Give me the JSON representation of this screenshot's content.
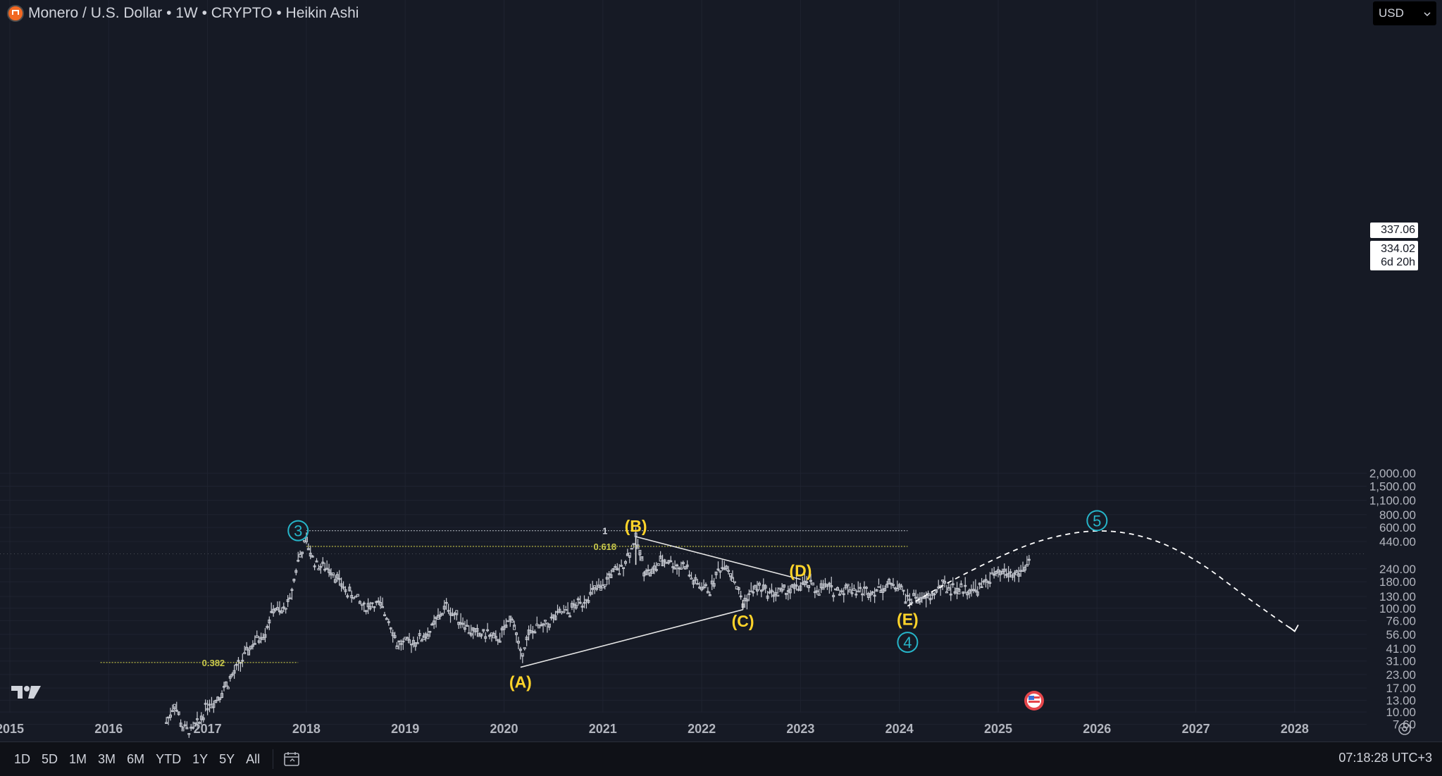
{
  "header": {
    "title": "Monero / U.S. Dollar • 1W • CRYPTO • Heikin Ashi",
    "coin_icon": "monero-logo"
  },
  "currency": {
    "label": "USD",
    "icon": "chevron-down-icon"
  },
  "price_tags": {
    "upper": "337.06",
    "lower": "334.02",
    "countdown": "6d 20h"
  },
  "time_ranges": [
    "1D",
    "5D",
    "1M",
    "3M",
    "6M",
    "YTD",
    "1Y",
    "5Y",
    "All"
  ],
  "clock": "07:18:28 UTC+3",
  "colors": {
    "background": "#161a25",
    "candles": "#c9ccd4",
    "wave_labels": "#ffd42a",
    "circle_labels": "#26b5c9",
    "fib_levels": "#c8c84a",
    "projection": "#ffffff"
  },
  "chart_data": {
    "type": "line",
    "title": "Monero / U.S. Dollar • 1W • CRYPTO • Heikin Ashi",
    "style": "heikin-ashi-candles",
    "y_scale": "log",
    "ylim": [
      6,
      2200
    ],
    "xlim": [
      "2015-01",
      "2028-09"
    ],
    "grid": true,
    "y_ticks": [
      2000,
      1500,
      1100,
      800,
      600,
      440,
      240,
      180,
      130,
      100,
      76,
      56,
      41,
      31,
      23,
      17,
      13,
      10,
      7.6
    ],
    "y_tick_labels": [
      "2,000.00",
      "1,500.00",
      "1,100.00",
      "800.00",
      "600.00",
      "440.00",
      "240.00",
      "180.00",
      "130.00",
      "100.00",
      "76.00",
      "56.00",
      "41.00",
      "31.00",
      "23.00",
      "17.00",
      "13.00",
      "10.00",
      "7.60"
    ],
    "x_tick_labels": [
      "2015",
      "2016",
      "2017",
      "2018",
      "2019",
      "2020",
      "2021",
      "2022",
      "2023",
      "2024",
      "2025",
      "2026",
      "2027",
      "2028"
    ],
    "price_path": [
      [
        "2016-08",
        8
      ],
      [
        "2016-09",
        12
      ],
      [
        "2016-10",
        7
      ],
      [
        "2016-11",
        6.5
      ],
      [
        "2016-12",
        8
      ],
      [
        "2017-01",
        12
      ],
      [
        "2017-02",
        13
      ],
      [
        "2017-03",
        17
      ],
      [
        "2017-04",
        22
      ],
      [
        "2017-05",
        30
      ],
      [
        "2017-06",
        40
      ],
      [
        "2017-07",
        50
      ],
      [
        "2017-08",
        60
      ],
      [
        "2017-09",
        100
      ],
      [
        "2017-10",
        90
      ],
      [
        "2017-11",
        120
      ],
      [
        "2017-12",
        300
      ],
      [
        "2018-01",
        430
      ],
      [
        "2018-02",
        280
      ],
      [
        "2018-03",
        250
      ],
      [
        "2018-04",
        240
      ],
      [
        "2018-05",
        180
      ],
      [
        "2018-06",
        140
      ],
      [
        "2018-07",
        130
      ],
      [
        "2018-08",
        100
      ],
      [
        "2018-09",
        110
      ],
      [
        "2018-10",
        105
      ],
      [
        "2018-11",
        80
      ],
      [
        "2018-12",
        45
      ],
      [
        "2019-01",
        45
      ],
      [
        "2019-02",
        48
      ],
      [
        "2019-03",
        52
      ],
      [
        "2019-04",
        60
      ],
      [
        "2019-05",
        80
      ],
      [
        "2019-06",
        105
      ],
      [
        "2019-07",
        85
      ],
      [
        "2019-08",
        75
      ],
      [
        "2019-09",
        60
      ],
      [
        "2019-10",
        55
      ],
      [
        "2019-11",
        58
      ],
      [
        "2019-12",
        48
      ],
      [
        "2020-01",
        60
      ],
      [
        "2020-02",
        85
      ],
      [
        "2020-03",
        35
      ],
      [
        "2020-04",
        55
      ],
      [
        "2020-05",
        65
      ],
      [
        "2020-06",
        66
      ],
      [
        "2020-07",
        80
      ],
      [
        "2020-08",
        90
      ],
      [
        "2020-09",
        95
      ],
      [
        "2020-10",
        110
      ],
      [
        "2020-11",
        125
      ],
      [
        "2020-12",
        150
      ],
      [
        "2021-01",
        155
      ],
      [
        "2021-02",
        220
      ],
      [
        "2021-03",
        230
      ],
      [
        "2021-04",
        320
      ],
      [
        "2021-05",
        470
      ],
      [
        "2021-06",
        240
      ],
      [
        "2021-07",
        220
      ],
      [
        "2021-08",
        280
      ],
      [
        "2021-09",
        290
      ],
      [
        "2021-10",
        250
      ],
      [
        "2021-11",
        260
      ],
      [
        "2021-12",
        180
      ],
      [
        "2022-01",
        160
      ],
      [
        "2022-02",
        150
      ],
      [
        "2022-03",
        230
      ],
      [
        "2022-04",
        270
      ],
      [
        "2022-05",
        180
      ],
      [
        "2022-06",
        110
      ],
      [
        "2022-07",
        145
      ],
      [
        "2022-08",
        160
      ],
      [
        "2022-09",
        145
      ],
      [
        "2022-10",
        140
      ],
      [
        "2022-11",
        145
      ],
      [
        "2022-12",
        150
      ],
      [
        "2023-01",
        165
      ],
      [
        "2023-02",
        170
      ],
      [
        "2023-03",
        150
      ],
      [
        "2023-04",
        160
      ],
      [
        "2023-05",
        150
      ],
      [
        "2023-06",
        148
      ],
      [
        "2023-07",
        160
      ],
      [
        "2023-08",
        150
      ],
      [
        "2023-09",
        145
      ],
      [
        "2023-10",
        150
      ],
      [
        "2023-11",
        160
      ],
      [
        "2023-12",
        170
      ],
      [
        "2024-01",
        165
      ],
      [
        "2024-02",
        120
      ],
      [
        "2024-03",
        130
      ],
      [
        "2024-04",
        120
      ],
      [
        "2024-05",
        130
      ],
      [
        "2024-06",
        165
      ],
      [
        "2024-07",
        160
      ],
      [
        "2024-08",
        150
      ],
      [
        "2024-09",
        155
      ],
      [
        "2024-10",
        150
      ],
      [
        "2024-11",
        160
      ],
      [
        "2024-12",
        200
      ],
      [
        "2025-01",
        210
      ],
      [
        "2025-02",
        220
      ],
      [
        "2025-03",
        210
      ],
      [
        "2025-04",
        230
      ],
      [
        "2025-05",
        330
      ]
    ],
    "fib_levels": [
      {
        "label": "1",
        "value": 560,
        "from": "2018-01",
        "to": "2024-02"
      },
      {
        "label": "0.618",
        "value": 395,
        "from": "2018-01",
        "to": "2024-02"
      },
      {
        "label": "0.382",
        "value": 30,
        "from": "2015-12",
        "to": "2017-12"
      }
    ],
    "triangle": {
      "points": [
        [
          "2020-03",
          27
        ],
        [
          "2021-05",
          490
        ],
        [
          "2022-06",
          97
        ],
        [
          "2023-01",
          190
        ],
        [
          "2024-02",
          105
        ]
      ]
    },
    "wave_labels": [
      {
        "text": "(A)",
        "x": "2020-03",
        "y": 19.5
      },
      {
        "text": "(B)",
        "x": "2021-05",
        "y": 620
      },
      {
        "text": "(C)",
        "x": "2022-06",
        "y": 75
      },
      {
        "text": "(D)",
        "x": "2023-01",
        "y": 230
      },
      {
        "text": "(E)",
        "x": "2024-02",
        "y": 78
      }
    ],
    "circle_labels": [
      {
        "text": "3",
        "x": "2017-12",
        "y": 560
      },
      {
        "text": "4",
        "x": "2024-02",
        "y": 47
      },
      {
        "text": "5",
        "x": "2026-01",
        "y": 700
      }
    ],
    "projection_path": [
      [
        "2024-02",
        105
      ],
      [
        "2024-07",
        180
      ],
      [
        "2025-02",
        340
      ],
      [
        "2025-07",
        480
      ],
      [
        "2026-01",
        580
      ],
      [
        "2026-07",
        500
      ],
      [
        "2027-01",
        300
      ],
      [
        "2027-07",
        130
      ],
      [
        "2028-01",
        60
      ]
    ]
  }
}
